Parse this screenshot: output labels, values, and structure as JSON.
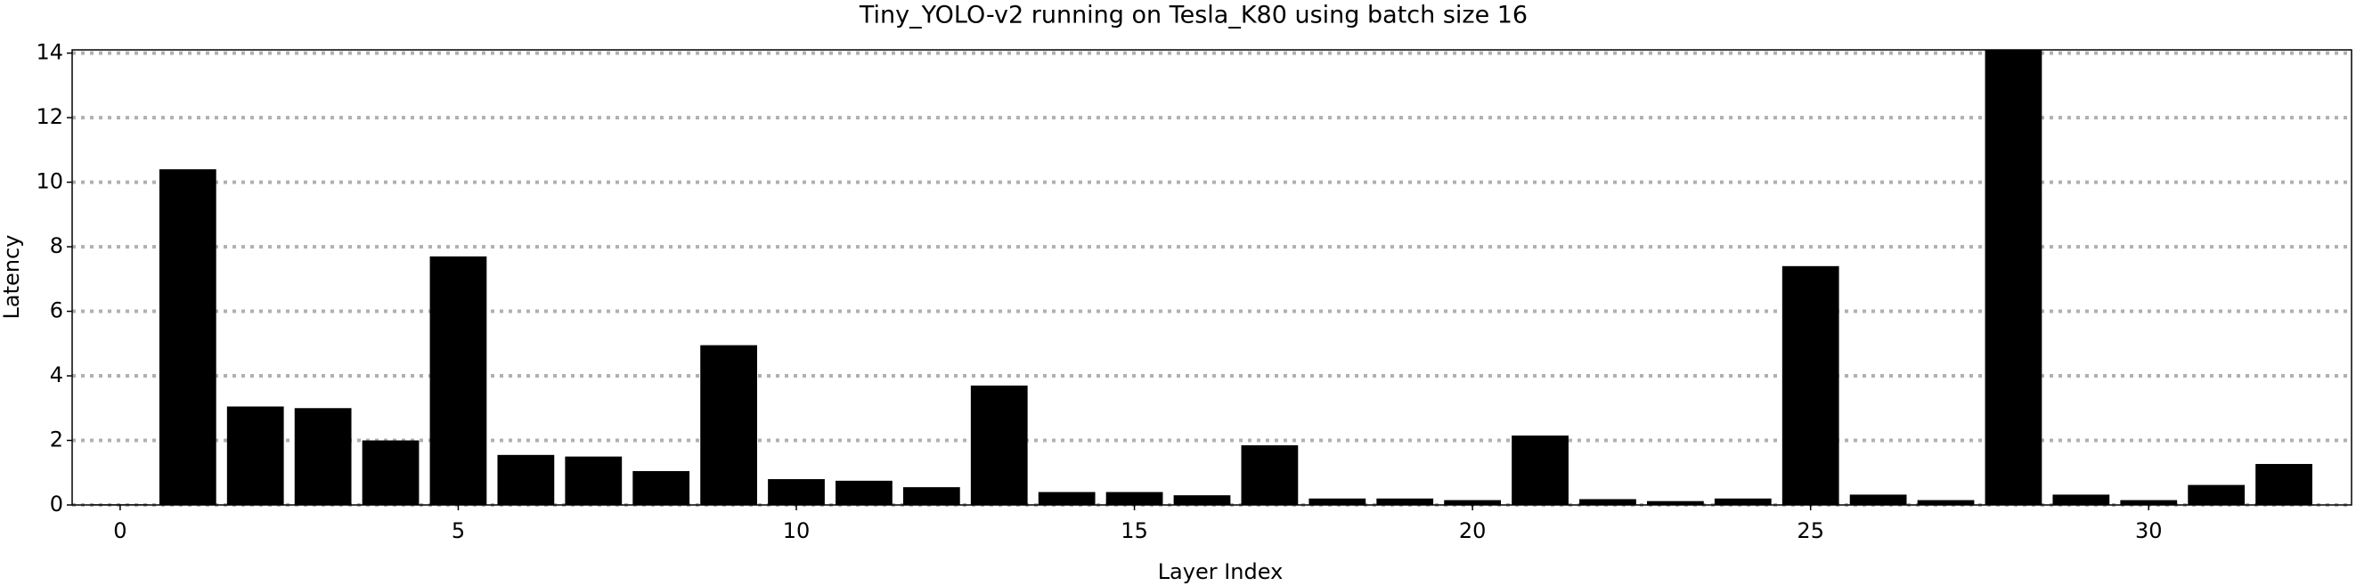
{
  "chart_data": {
    "type": "bar",
    "title": "Tiny_YOLO-v2 running on Tesla_K80 using batch size 16",
    "x_label": "Layer Index",
    "y_label": "Latency",
    "x": [
      0,
      1,
      2,
      3,
      4,
      5,
      6,
      7,
      8,
      9,
      10,
      11,
      12,
      13,
      14,
      15,
      16,
      17,
      18,
      19,
      20,
      21,
      22,
      23,
      24,
      25,
      26,
      27,
      28,
      29,
      30,
      31,
      32
    ],
    "values": [
      0.02,
      10.4,
      3.05,
      3.0,
      2.0,
      7.7,
      1.55,
      1.5,
      1.05,
      4.95,
      0.8,
      0.75,
      0.55,
      3.7,
      0.4,
      0.4,
      0.3,
      1.85,
      0.2,
      0.2,
      0.15,
      2.15,
      0.18,
      0.12,
      0.2,
      7.4,
      0.32,
      0.15,
      14.1,
      0.32,
      0.15,
      0.62,
      1.27
    ],
    "color": "#000000",
    "xlim": [
      -0.71,
      33.0
    ],
    "xticks": [
      0,
      5,
      10,
      15,
      20,
      25,
      30
    ],
    "ylim": [
      0,
      14.1
    ],
    "yticks": [
      0,
      2,
      4,
      6,
      8,
      10,
      12,
      14
    ],
    "grid": true
  }
}
